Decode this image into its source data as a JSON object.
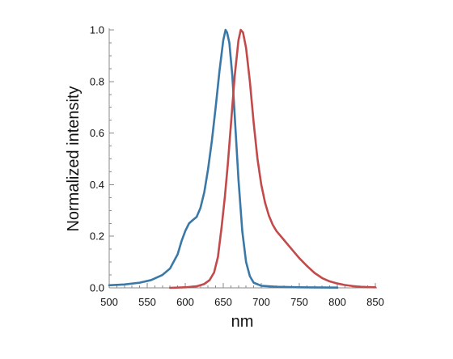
{
  "chart_data": {
    "type": "line",
    "title": "",
    "xlabel": "nm",
    "ylabel": "Normalized intensity",
    "xlim": [
      500,
      850
    ],
    "ylim": [
      0,
      1.0
    ],
    "x_ticks": [
      500,
      550,
      600,
      650,
      700,
      750,
      800,
      850
    ],
    "y_ticks": [
      0.0,
      0.2,
      0.4,
      0.6,
      0.8,
      1.0
    ],
    "x_tick_labels": [
      "500",
      "550",
      "600",
      "650",
      "700",
      "750",
      "800",
      "850"
    ],
    "y_tick_labels": [
      "0.0",
      "0.2",
      "0.4",
      "0.6",
      "0.8",
      "1.0"
    ],
    "grid": false,
    "legend": "none",
    "series": [
      {
        "color": "#3a78a8",
        "points": [
          [
            500,
            0.01
          ],
          [
            520,
            0.013
          ],
          [
            540,
            0.02
          ],
          [
            555,
            0.03
          ],
          [
            570,
            0.05
          ],
          [
            580,
            0.075
          ],
          [
            590,
            0.13
          ],
          [
            595,
            0.18
          ],
          [
            600,
            0.22
          ],
          [
            605,
            0.25
          ],
          [
            610,
            0.263
          ],
          [
            615,
            0.275
          ],
          [
            620,
            0.31
          ],
          [
            625,
            0.37
          ],
          [
            630,
            0.46
          ],
          [
            635,
            0.57
          ],
          [
            640,
            0.7
          ],
          [
            645,
            0.84
          ],
          [
            650,
            0.96
          ],
          [
            653,
            1.0
          ],
          [
            655,
            0.99
          ],
          [
            658,
            0.95
          ],
          [
            662,
            0.82
          ],
          [
            666,
            0.62
          ],
          [
            670,
            0.42
          ],
          [
            675,
            0.22
          ],
          [
            680,
            0.1
          ],
          [
            685,
            0.045
          ],
          [
            690,
            0.02
          ],
          [
            700,
            0.008
          ],
          [
            720,
            0.004
          ],
          [
            750,
            0.002
          ],
          [
            800,
            0.001
          ]
        ]
      },
      {
        "color": "#c34a4a",
        "points": [
          [
            580,
            0.0
          ],
          [
            600,
            0.002
          ],
          [
            615,
            0.006
          ],
          [
            625,
            0.015
          ],
          [
            632,
            0.03
          ],
          [
            638,
            0.06
          ],
          [
            643,
            0.12
          ],
          [
            648,
            0.24
          ],
          [
            652,
            0.35
          ],
          [
            656,
            0.48
          ],
          [
            660,
            0.63
          ],
          [
            665,
            0.82
          ],
          [
            670,
            0.96
          ],
          [
            673,
            1.0
          ],
          [
            676,
            0.99
          ],
          [
            680,
            0.93
          ],
          [
            685,
            0.8
          ],
          [
            690,
            0.64
          ],
          [
            695,
            0.5
          ],
          [
            700,
            0.4
          ],
          [
            705,
            0.33
          ],
          [
            710,
            0.28
          ],
          [
            715,
            0.245
          ],
          [
            720,
            0.22
          ],
          [
            730,
            0.185
          ],
          [
            740,
            0.15
          ],
          [
            750,
            0.115
          ],
          [
            760,
            0.085
          ],
          [
            770,
            0.058
          ],
          [
            780,
            0.038
          ],
          [
            790,
            0.025
          ],
          [
            800,
            0.017
          ],
          [
            810,
            0.011
          ],
          [
            820,
            0.007
          ],
          [
            830,
            0.004
          ],
          [
            840,
            0.003
          ],
          [
            850,
            0.002
          ]
        ]
      }
    ]
  }
}
